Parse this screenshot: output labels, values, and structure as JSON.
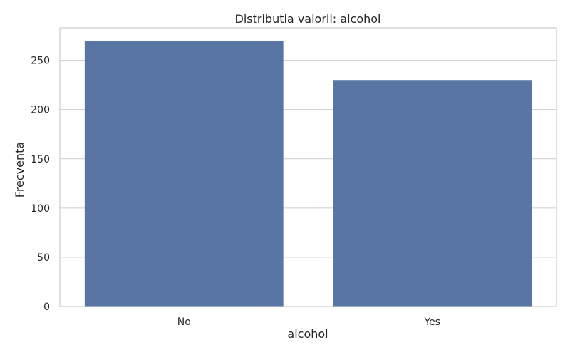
{
  "chart_data": {
    "type": "bar",
    "title": "Distributia valorii: alcohol",
    "xlabel": "alcohol",
    "ylabel": "Frecventa",
    "categories": [
      "No",
      "Yes"
    ],
    "values": [
      270,
      230
    ],
    "ylim": [
      0,
      283
    ],
    "yticks": [
      0,
      50,
      100,
      150,
      200,
      250
    ],
    "grid": true,
    "bar_color": "#5975a4",
    "grid_color": "#cccccc",
    "frame_color": "#cccccc"
  }
}
